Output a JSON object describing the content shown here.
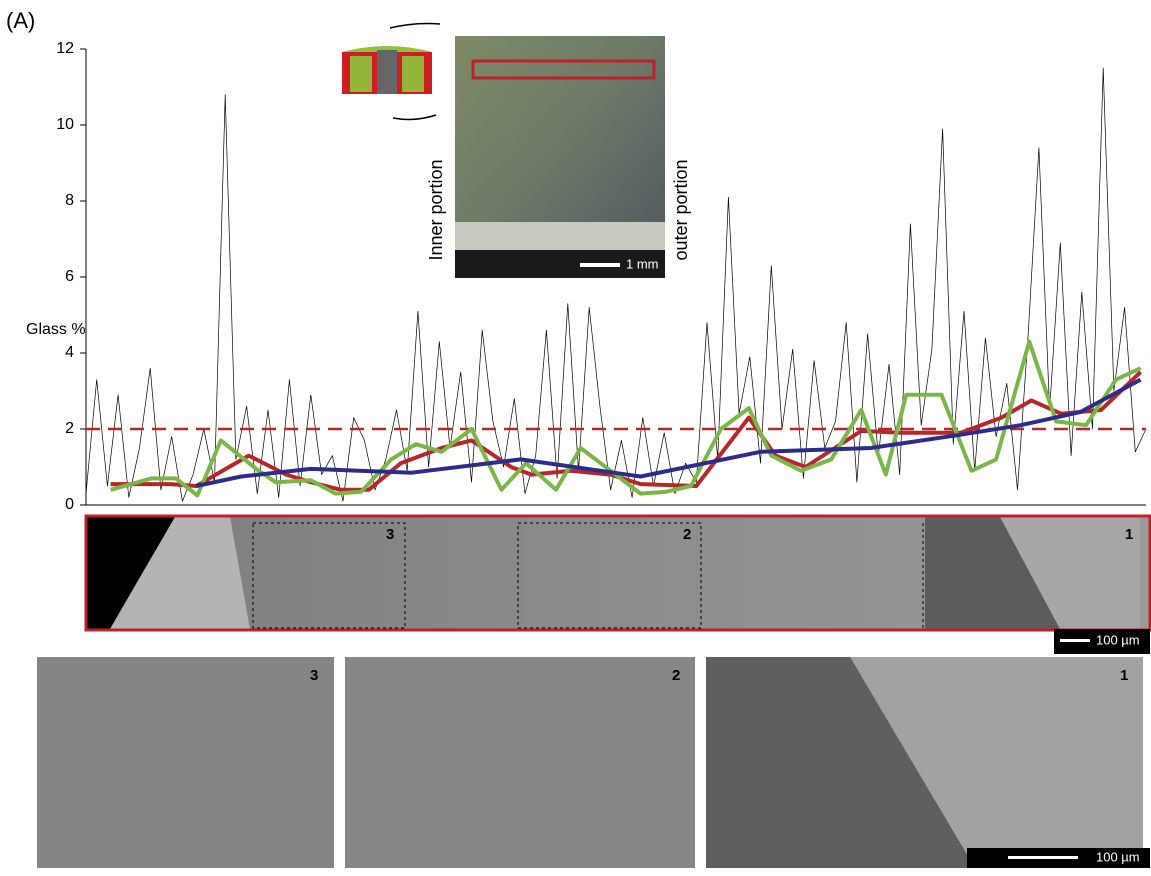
{
  "chart_data": {
    "type": "line",
    "panel_label": "(A)",
    "y_label": "Glass %",
    "xlim": [
      0,
      99
    ],
    "ylim": [
      0,
      12
    ],
    "yticks": [
      0,
      2,
      4,
      6,
      8,
      10,
      12
    ],
    "reference_line": {
      "value": 2,
      "color": "#b5282a",
      "dashed": true
    },
    "series": [
      {
        "color": "#000000",
        "width": 0.7,
        "x": [
          0,
          1,
          2,
          3,
          4,
          5,
          6,
          7,
          8,
          9,
          10,
          11,
          12,
          13,
          14,
          15,
          16,
          17,
          18,
          19,
          20,
          21,
          22,
          23,
          24,
          25,
          26,
          27,
          28,
          29,
          30,
          31,
          32,
          33,
          34,
          35,
          36,
          37,
          38,
          39,
          40,
          41,
          42,
          43,
          44,
          45,
          46,
          47,
          48,
          49,
          50,
          51,
          52,
          53,
          54,
          55,
          56,
          57,
          58,
          59,
          60,
          61,
          62,
          63,
          64,
          65,
          66,
          67,
          68,
          69,
          70,
          71,
          72,
          73,
          74,
          75,
          76,
          77,
          78,
          79,
          80,
          81,
          82,
          83,
          84,
          85,
          86,
          87,
          88,
          89,
          90,
          91,
          92,
          93,
          94,
          95,
          96,
          97,
          98,
          99
        ],
        "values": [
          0.3,
          3.3,
          0.5,
          2.9,
          0.2,
          1.5,
          3.6,
          0.4,
          1.8,
          0.1,
          0.8,
          2.0,
          0.6,
          10.8,
          1.2,
          2.6,
          0.3,
          2.5,
          0.2,
          3.3,
          0.5,
          2.9,
          0.8,
          1.3,
          0.1,
          2.3,
          1.7,
          0.4,
          1.2,
          2.5,
          0.9,
          5.1,
          1.0,
          4.3,
          1.5,
          3.5,
          0.6,
          4.6,
          2.2,
          1.0,
          2.8,
          0.3,
          1.3,
          4.6,
          0.7,
          5.3,
          0.9,
          5.2,
          2.6,
          0.4,
          1.7,
          0.2,
          2.3,
          0.5,
          1.9,
          0.3,
          1.1,
          0.6,
          4.8,
          1.2,
          8.1,
          2.4,
          3.9,
          1.1,
          6.3,
          2.0,
          4.1,
          0.7,
          3.8,
          1.5,
          2.2,
          4.8,
          0.6,
          4.5,
          1.3,
          3.7,
          0.8,
          7.4,
          2.1,
          4.1,
          9.9,
          1.6,
          5.1,
          0.9,
          4.4,
          1.8,
          3.2,
          0.4,
          4.5,
          9.4,
          2.5,
          6.9,
          1.3,
          5.6,
          2.0,
          11.5,
          3.0,
          5.2,
          1.4,
          2.0
        ]
      },
      {
        "color": "#b5282a",
        "width": 4,
        "x": [
          2.3,
          7.9,
          10.3,
          15.2,
          18.7,
          21,
          23.8,
          26.4,
          29.4,
          33.2,
          36,
          39.7,
          41.6,
          45.3,
          49,
          51.8,
          57,
          61.9,
          64.4,
          67.2,
          72.4,
          76.1,
          81.7,
          85.5,
          88.3,
          91.1,
          94.8,
          98.5
        ],
        "values": [
          0.55,
          0.55,
          0.5,
          1.3,
          0.8,
          0.6,
          0.4,
          0.4,
          1.1,
          1.5,
          1.7,
          1.0,
          0.8,
          0.9,
          0.8,
          0.55,
          0.5,
          2.3,
          1.3,
          1.0,
          1.95,
          1.9,
          1.9,
          2.3,
          2.75,
          2.4,
          2.5,
          3.5
        ]
      },
      {
        "color": "#7ab648",
        "width": 4,
        "x": [
          2.3,
          6.1,
          8.4,
          10.4,
          12.6,
          15.9,
          17.7,
          21,
          23.3,
          25.7,
          28.5,
          30.8,
          33.2,
          36,
          38.8,
          41.1,
          43.9,
          46.2,
          49,
          51.8,
          54.2,
          56.5,
          59.3,
          61.9,
          64,
          66.8,
          69.6,
          72.4,
          74.7,
          76.6,
          79.9,
          82.7,
          85,
          88.1,
          90.6,
          93.4,
          96.2,
          98.5
        ],
        "values": [
          0.4,
          0.7,
          0.7,
          0.25,
          1.7,
          0.95,
          0.6,
          0.65,
          0.3,
          0.35,
          1.2,
          1.6,
          1.4,
          2.0,
          0.4,
          1.1,
          0.4,
          1.5,
          0.9,
          0.3,
          0.35,
          0.5,
          2.0,
          2.55,
          1.3,
          0.9,
          1.2,
          2.5,
          0.8,
          2.9,
          2.9,
          0.9,
          1.2,
          4.3,
          2.2,
          2.1,
          3.3,
          3.6
        ]
      },
      {
        "color": "#2e2c8a",
        "width": 4,
        "x": [
          10.3,
          14.5,
          21,
          30.4,
          40.6,
          51.8,
          63,
          73.3,
          81.7,
          87.3,
          92.9,
          98.5
        ],
        "values": [
          0.5,
          0.75,
          0.95,
          0.85,
          1.2,
          0.75,
          1.4,
          1.5,
          1.85,
          2.1,
          2.45,
          3.3
        ]
      }
    ]
  },
  "figure": {
    "inset": {
      "left_label": "Inner portion",
      "right_label": "outer portion",
      "scale": "1 mm"
    },
    "strip": {
      "boxes": [
        "3",
        "2",
        "1"
      ],
      "scale": "100 µm"
    },
    "panels": {
      "labels": [
        "3",
        "2",
        "1"
      ],
      "scale": "100 µm"
    }
  }
}
